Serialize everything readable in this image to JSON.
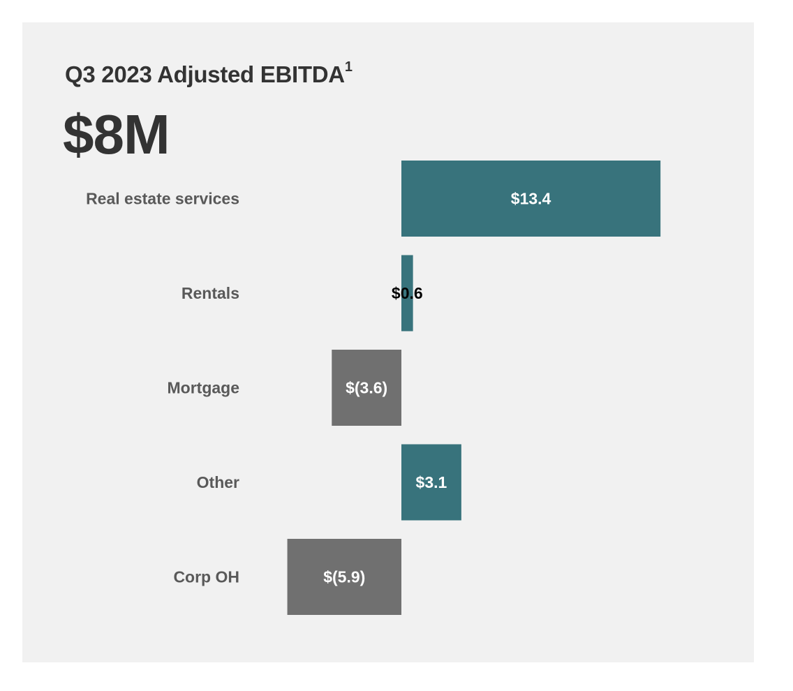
{
  "header": {
    "title": "Q3 2023 Adjusted EBITDA",
    "title_footnote": "1",
    "headline_value": "$8M"
  },
  "colors": {
    "positive": "#38737c",
    "negative": "#707070",
    "panel_background": "#f1f1f1",
    "category_text": "#595959"
  },
  "chart_data": {
    "type": "bar",
    "orientation": "horizontal",
    "categories": [
      "Real estate services",
      "Rentals",
      "Mortgage",
      "Other",
      "Corp OH"
    ],
    "values": [
      13.4,
      0.6,
      -3.6,
      3.1,
      -5.9
    ],
    "value_labels": [
      "$13.4",
      "$0.6",
      "$(3.6)",
      "$3.1",
      "$(5.9)"
    ],
    "grid": false,
    "legend": "none"
  }
}
